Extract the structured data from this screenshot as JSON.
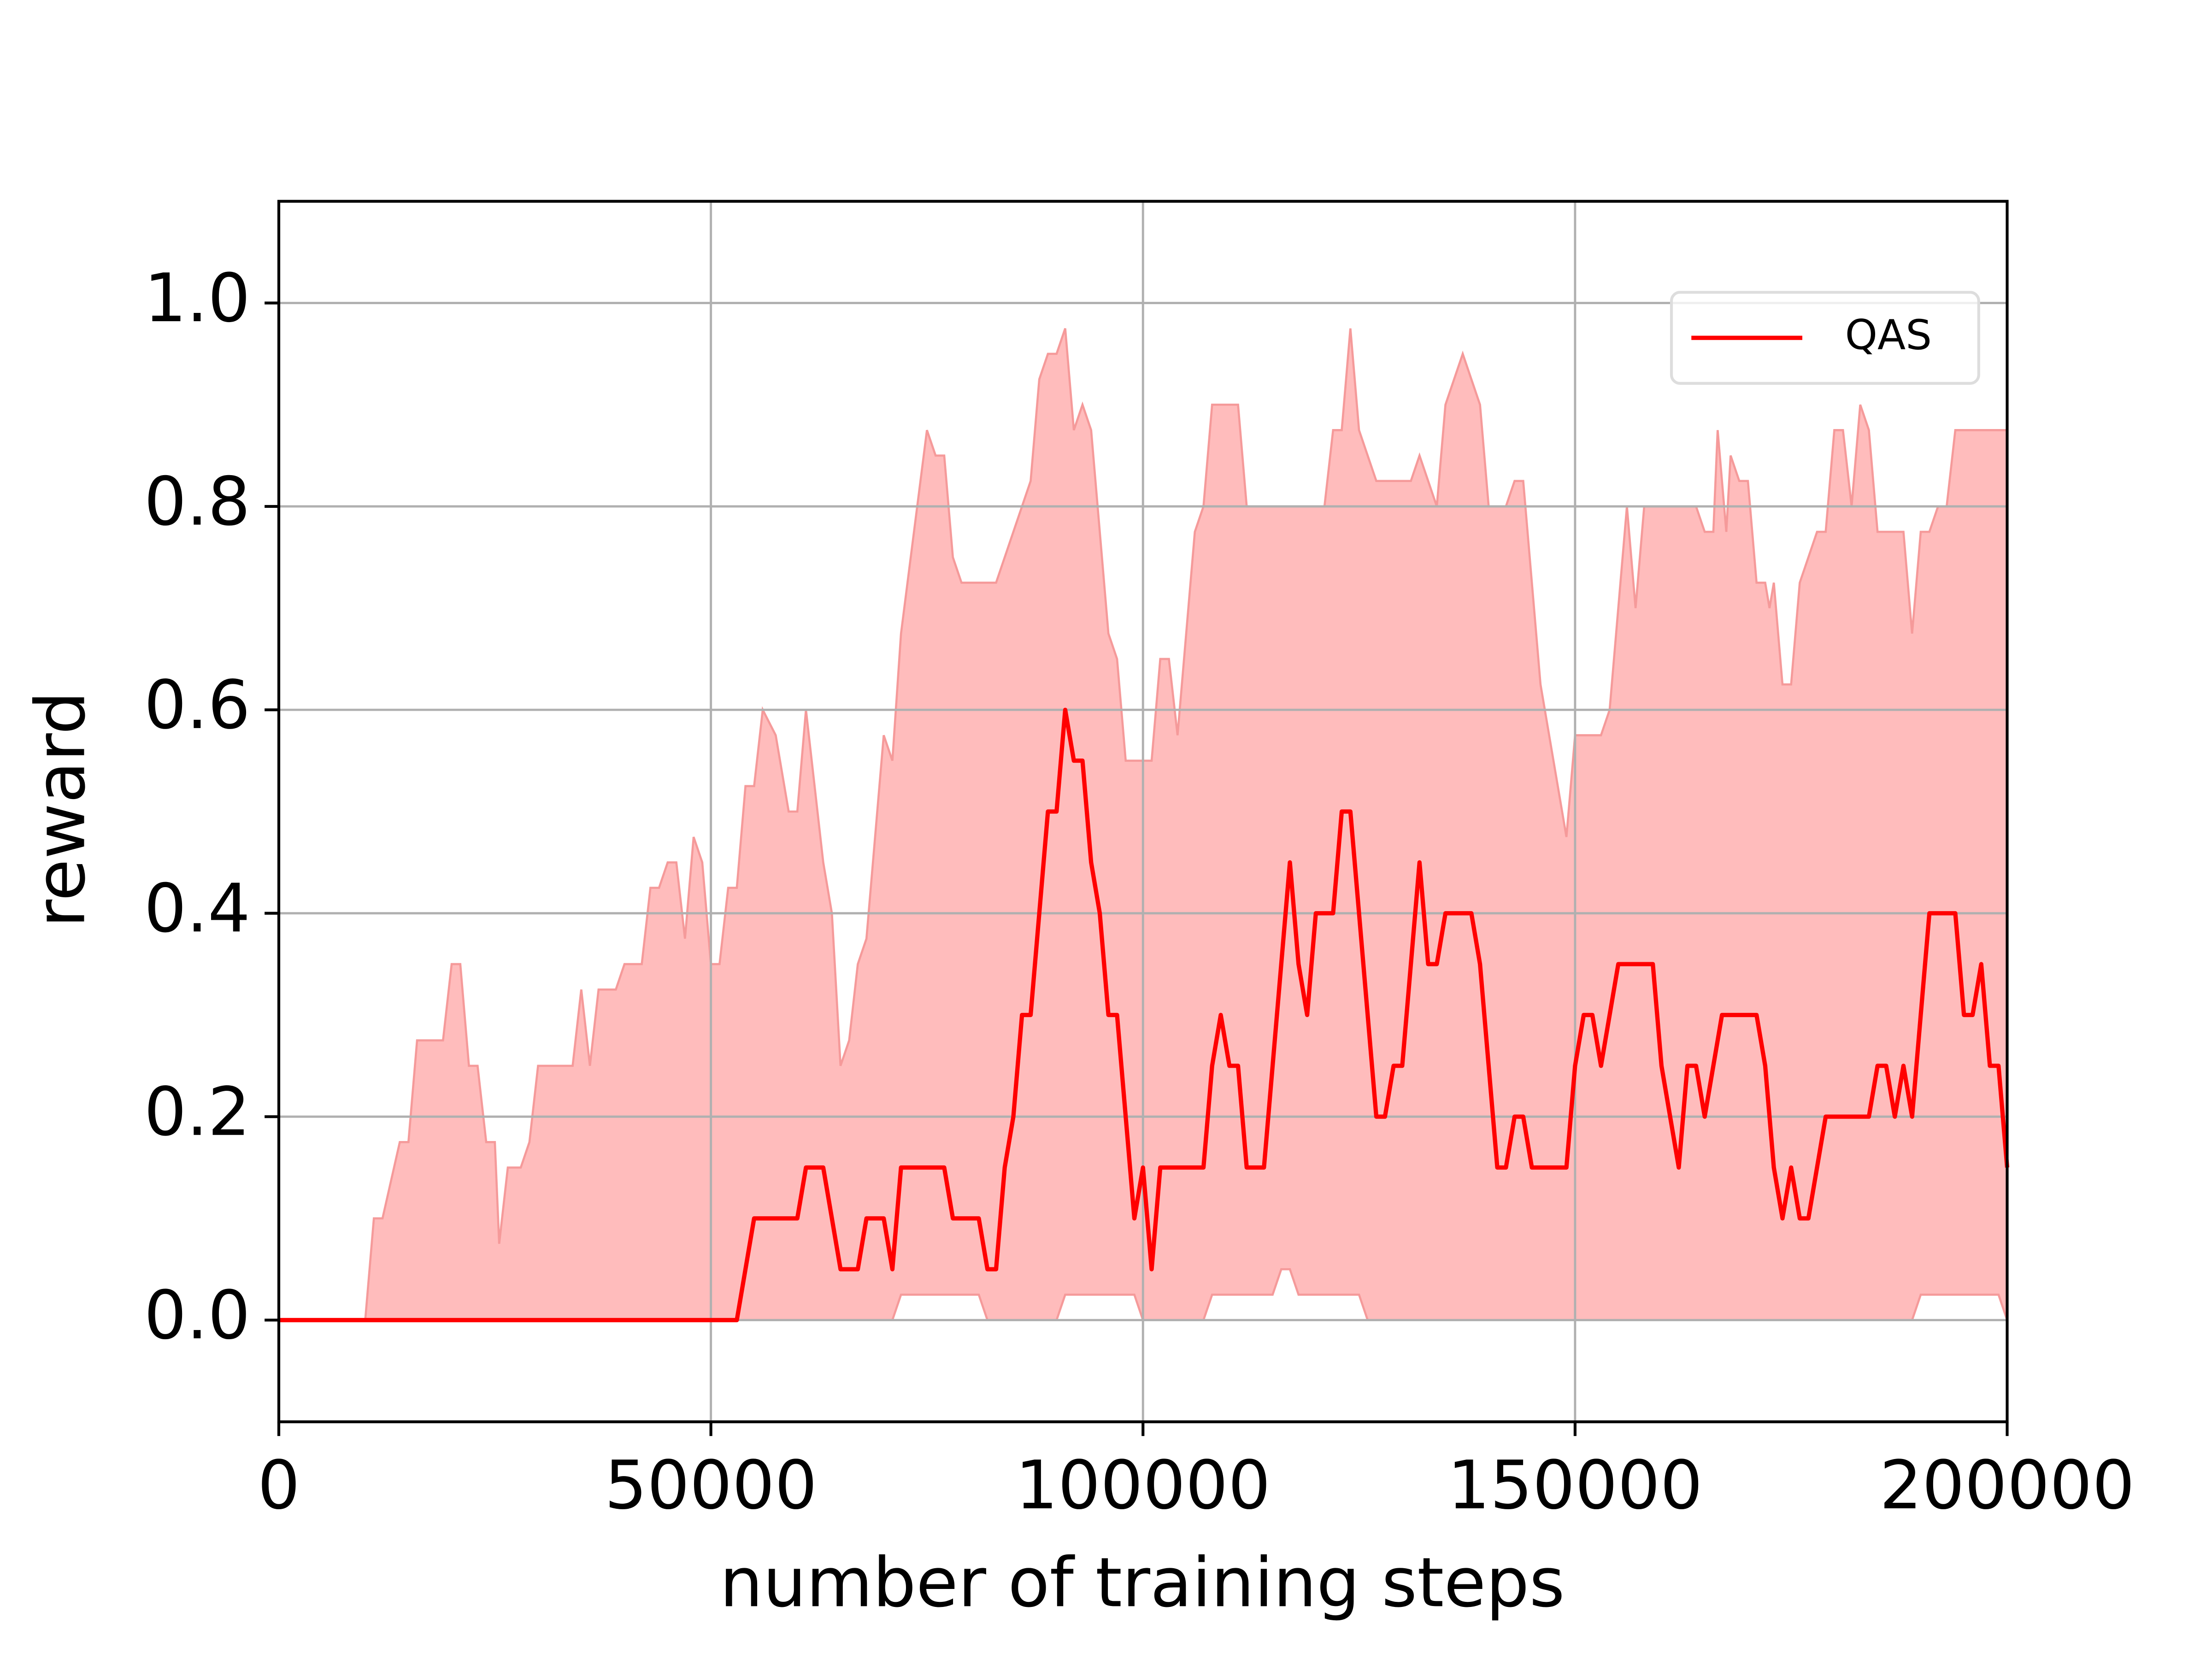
{
  "chart_data": {
    "type": "line",
    "xlabel": "number of training steps",
    "ylabel": "reward",
    "xlim": [
      0,
      200000
    ],
    "ylim": [
      -0.1,
      1.1
    ],
    "xticks": [
      0,
      50000,
      100000,
      150000,
      200000
    ],
    "yticks": [
      {
        "value": 0,
        "label": "0.0"
      },
      0.2,
      0.4,
      0.6,
      0.8,
      {
        "value": 1,
        "label": "1.0"
      }
    ],
    "grid": true,
    "legend": "upper right",
    "series": [
      {
        "name": "QAS",
        "color": "#ff0000",
        "x": [
          0,
          53000,
          55000,
          60000,
          61000,
          63000,
          65000,
          67000,
          68000,
          70000,
          71000,
          72000,
          77000,
          78000,
          81000,
          82000,
          83000,
          84000,
          85000,
          86000,
          87000,
          89000,
          90000,
          91000,
          92000,
          93000,
          94000,
          95000,
          96000,
          97000,
          99000,
          100000,
          101000,
          102000,
          107000,
          108000,
          109000,
          110000,
          111000,
          112000,
          114000,
          117000,
          118000,
          119000,
          120000,
          122000,
          123000,
          124000,
          127000,
          128000,
          129000,
          130000,
          132000,
          133000,
          134000,
          135000,
          138000,
          139000,
          141000,
          142000,
          143000,
          144000,
          145000,
          149000,
          150000,
          151000,
          152000,
          153000,
          155000,
          159000,
          160000,
          162000,
          163000,
          164000,
          165000,
          167000,
          171000,
          172000,
          173000,
          174000,
          175000,
          176000,
          177000,
          179000,
          184000,
          185000,
          186000,
          187000,
          188000,
          189000,
          191000,
          194000,
          195000,
          196000,
          197000,
          198000,
          199000,
          200000
        ],
        "values": [
          0,
          0,
          0.1,
          0.1,
          0.15,
          0.15,
          0.05,
          0.05,
          0.1,
          0.1,
          0.05,
          0.15,
          0.15,
          0.1,
          0.1,
          0.05,
          0.05,
          0.15,
          0.2,
          0.3,
          0.3,
          0.5,
          0.5,
          0.6,
          0.55,
          0.55,
          0.45,
          0.4,
          0.3,
          0.3,
          0.1,
          0.15,
          0.05,
          0.15,
          0.15,
          0.25,
          0.3,
          0.25,
          0.25,
          0.15,
          0.15,
          0.45,
          0.35,
          0.3,
          0.4,
          0.4,
          0.5,
          0.5,
          0.2,
          0.2,
          0.25,
          0.25,
          0.45,
          0.35,
          0.35,
          0.4,
          0.4,
          0.35,
          0.15,
          0.15,
          0.2,
          0.2,
          0.15,
          0.15,
          0.25,
          0.3,
          0.3,
          0.25,
          0.35,
          0.35,
          0.25,
          0.15,
          0.25,
          0.25,
          0.2,
          0.3,
          0.3,
          0.25,
          0.15,
          0.1,
          0.15,
          0.1,
          0.1,
          0.2,
          0.2,
          0.25,
          0.25,
          0.2,
          0.25,
          0.2,
          0.4,
          0.4,
          0.3,
          0.3,
          0.35,
          0.25,
          0.25,
          0.15
        ]
      }
    ],
    "band": {
      "color": "#ffbcbc",
      "edge_color": "#f59a9a",
      "upper": {
        "x": [
          0,
          10000,
          11000,
          12000,
          14000,
          15000,
          16000,
          19000,
          20000,
          21000,
          22000,
          23000,
          24000,
          25000,
          25500,
          26500,
          28000,
          29000,
          30000,
          34000,
          35000,
          36000,
          37000,
          39000,
          40000,
          42000,
          43000,
          44000,
          45000,
          46000,
          47000,
          48000,
          49000,
          50000,
          51000,
          52000,
          53000,
          54000,
          55000,
          56000,
          57500,
          59000,
          60000,
          61000,
          63000,
          64000,
          65000,
          66000,
          67000,
          68000,
          70000,
          71000,
          72000,
          75000,
          76000,
          77000,
          78000,
          79000,
          83000,
          87000,
          88000,
          89000,
          90000,
          91000,
          92000,
          93000,
          94000,
          96000,
          97000,
          98000,
          101000,
          102000,
          103000,
          104000,
          106000,
          107000,
          108000,
          111000,
          112000,
          121000,
          122000,
          123000,
          124000,
          125000,
          127000,
          131000,
          132000,
          134000,
          135000,
          137000,
          139000,
          140000,
          142000,
          143000,
          144000,
          146000,
          149000,
          150000,
          153000,
          154000,
          156000,
          157000,
          158000,
          164000,
          165000,
          166000,
          166500,
          167500,
          168000,
          169000,
          170000,
          171000,
          172000,
          172500,
          173000,
          174000,
          175000,
          176000,
          178000,
          179000,
          180000,
          181000,
          182000,
          183000,
          184000,
          185000,
          188000,
          189000,
          190000,
          191000,
          192000,
          193000,
          194000,
          200000
        ],
        "values": [
          0,
          0,
          0.1,
          0.1,
          0.175,
          0.175,
          0.275,
          0.275,
          0.35,
          0.35,
          0.25,
          0.25,
          0.175,
          0.175,
          0.075,
          0.15,
          0.15,
          0.175,
          0.25,
          0.25,
          0.325,
          0.25,
          0.325,
          0.325,
          0.35,
          0.35,
          0.425,
          0.425,
          0.45,
          0.45,
          0.375,
          0.475,
          0.45,
          0.35,
          0.35,
          0.425,
          0.425,
          0.525,
          0.525,
          0.6,
          0.575,
          0.5,
          0.5,
          0.6,
          0.45,
          0.4,
          0.25,
          0.275,
          0.35,
          0.375,
          0.575,
          0.55,
          0.675,
          0.875,
          0.85,
          0.85,
          0.75,
          0.725,
          0.725,
          0.825,
          0.925,
          0.95,
          0.95,
          0.975,
          0.875,
          0.9,
          0.875,
          0.675,
          0.65,
          0.55,
          0.55,
          0.65,
          0.65,
          0.575,
          0.775,
          0.8,
          0.9,
          0.9,
          0.8,
          0.8,
          0.875,
          0.875,
          0.975,
          0.875,
          0.825,
          0.825,
          0.85,
          0.8,
          0.9,
          0.95,
          0.9,
          0.8,
          0.8,
          0.825,
          0.825,
          0.625,
          0.475,
          0.575,
          0.575,
          0.6,
          0.8,
          0.7,
          0.8,
          0.8,
          0.775,
          0.775,
          0.875,
          0.775,
          0.85,
          0.825,
          0.825,
          0.725,
          0.725,
          0.7,
          0.725,
          0.625,
          0.625,
          0.725,
          0.775,
          0.775,
          0.875,
          0.875,
          0.8,
          0.9,
          0.875,
          0.775,
          0.775,
          0.675,
          0.775,
          0.775,
          0.8,
          0.8,
          0.875,
          0.875
        ]
      },
      "lower": {
        "x": [
          0,
          71000,
          72000,
          81000,
          82000,
          90000,
          91000,
          99000,
          100000,
          107000,
          108000,
          115000,
          116000,
          117000,
          118000,
          125000,
          126000,
          189000,
          190000,
          199000,
          200000
        ],
        "values": [
          0,
          0,
          0.025,
          0.025,
          0,
          0,
          0.025,
          0.025,
          0,
          0,
          0.025,
          0.025,
          0.05,
          0.05,
          0.025,
          0.025,
          0,
          0,
          0.025,
          0.025,
          0
        ]
      }
    }
  }
}
